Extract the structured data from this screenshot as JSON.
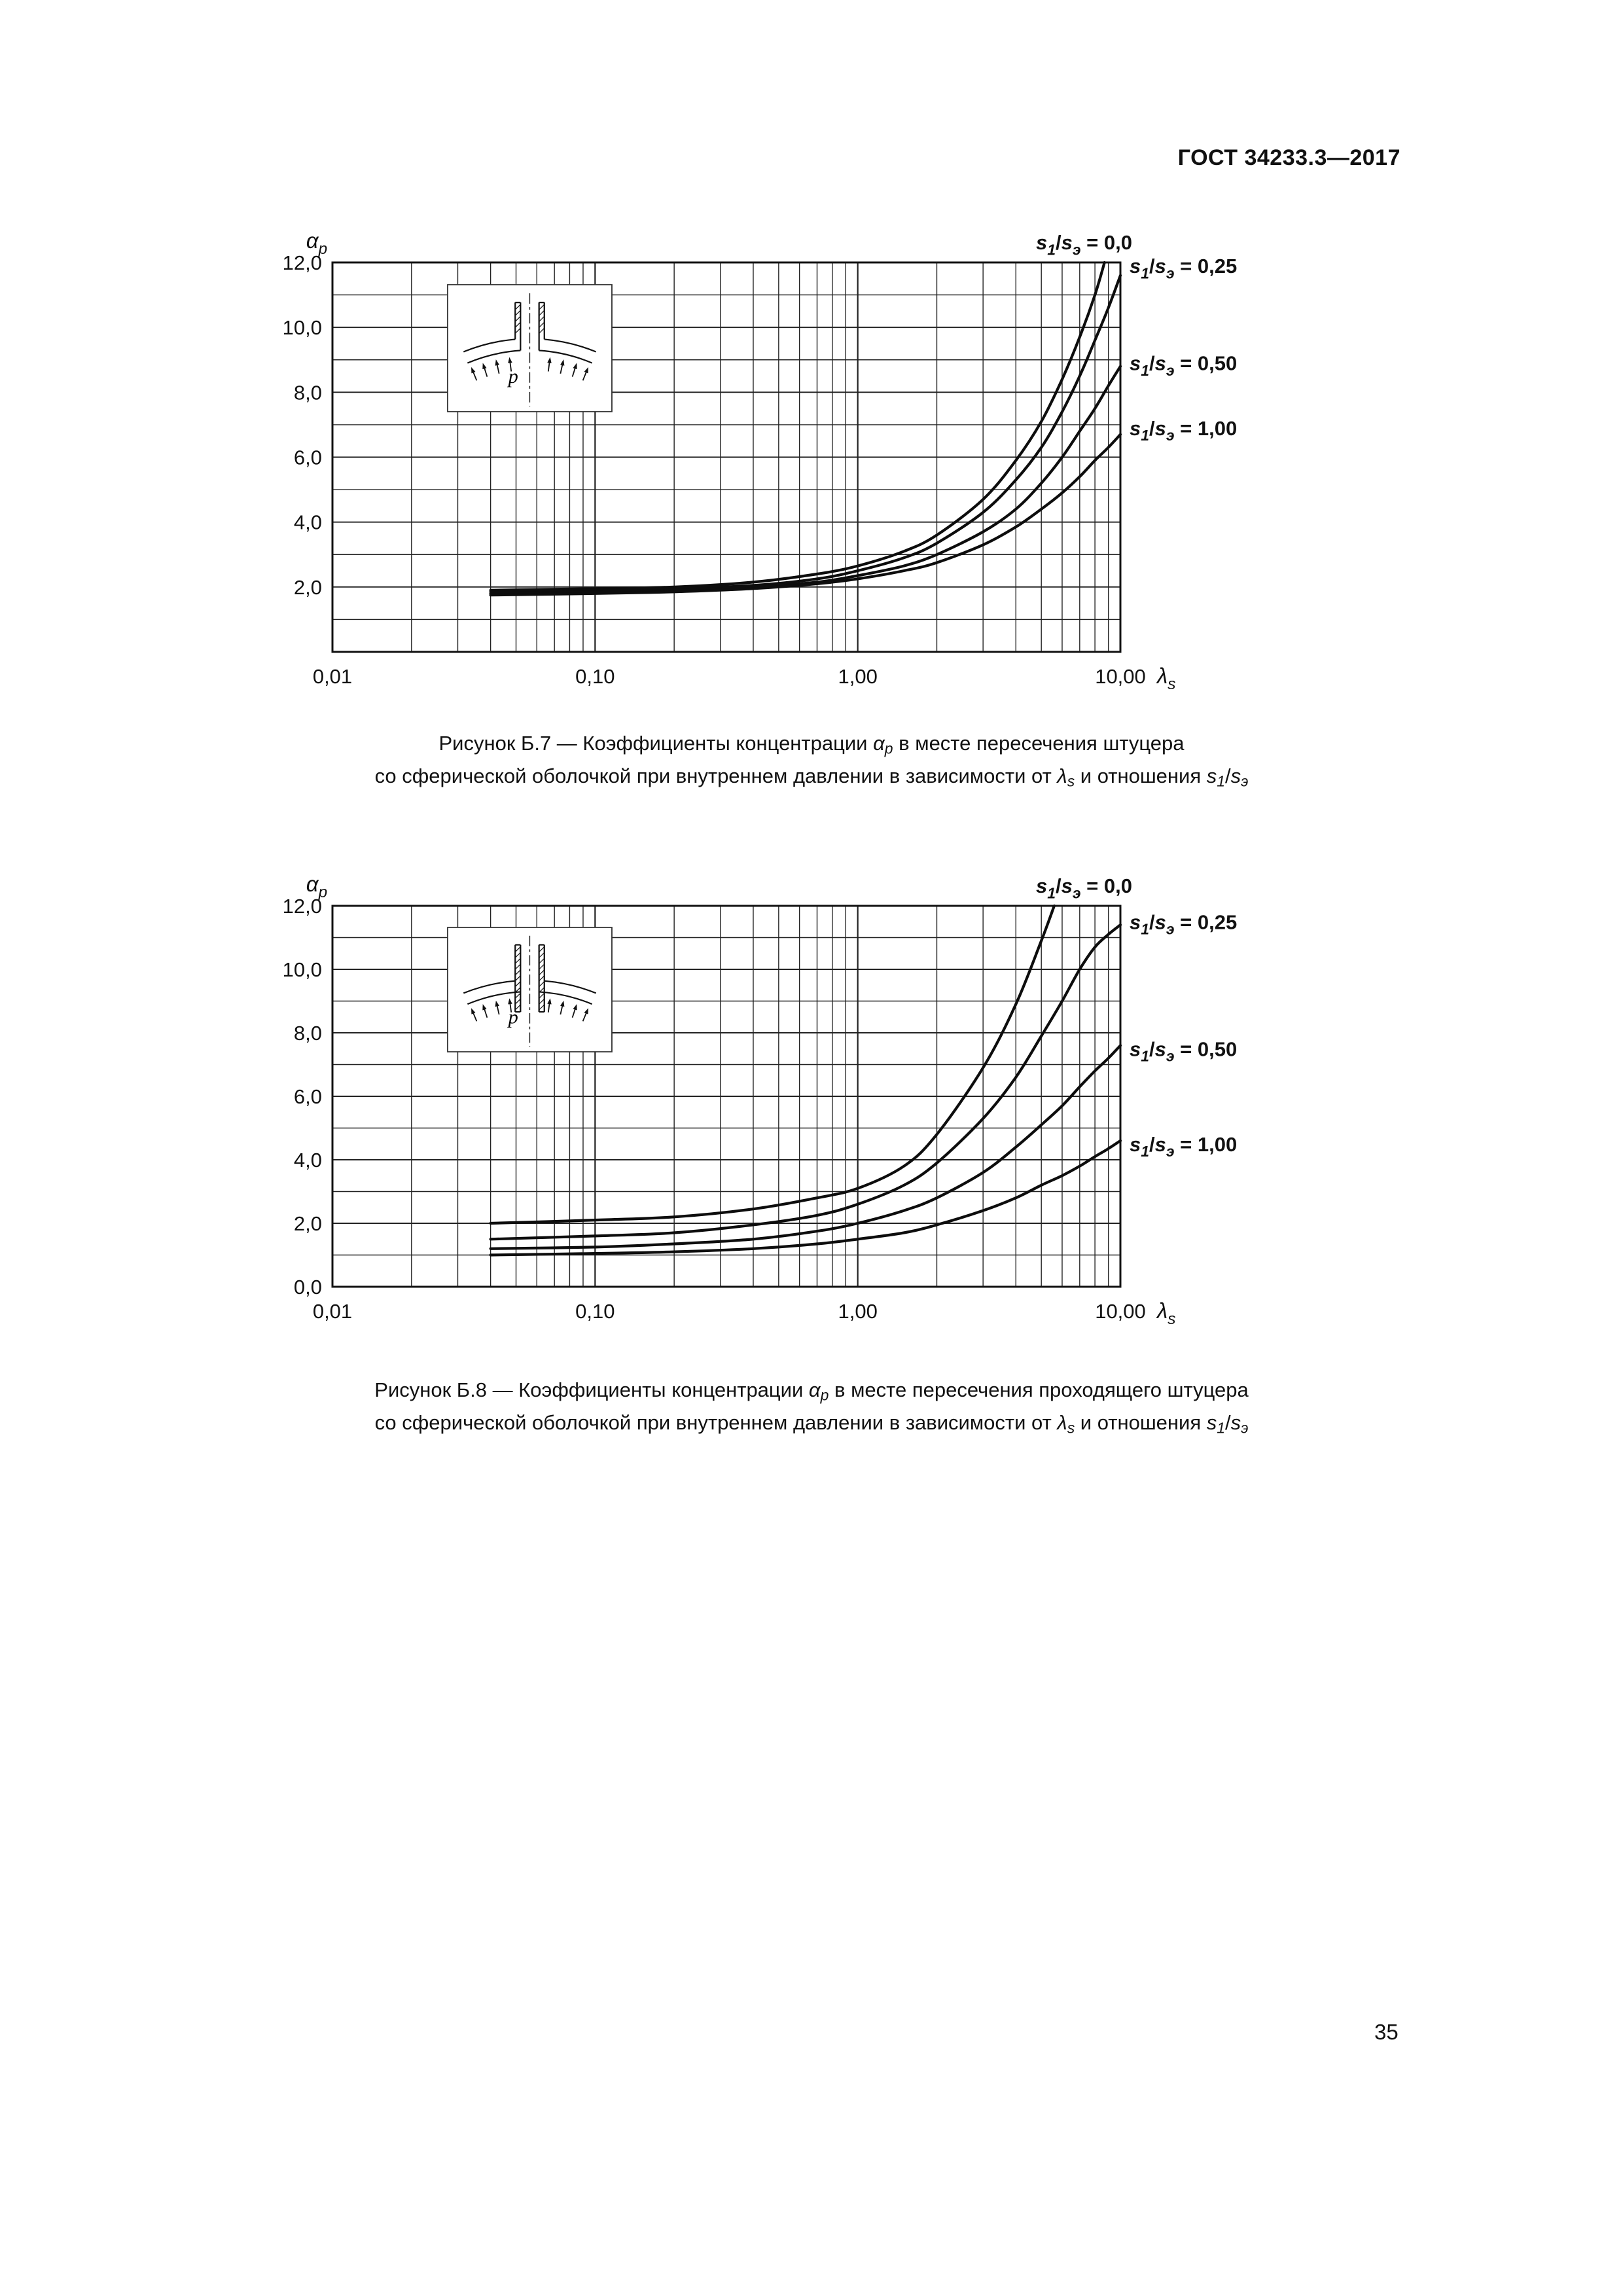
{
  "page": {
    "header": "ГОСТ 34233.3—2017",
    "page_number": "35"
  },
  "chart_data": [
    {
      "name": "figure-b7",
      "type": "line",
      "x_scale": "log",
      "xlim": [
        0.01,
        10
      ],
      "ylim": [
        0,
        12
      ],
      "grid": {
        "y_minor_step": 1,
        "x_log_minors": true
      },
      "x_axis": {
        "title_parts": [
          {
            "t": "λ",
            "i": true
          },
          {
            "t": "s",
            "sub": true,
            "i": true
          }
        ],
        "ticks": [
          {
            "v": 0.01,
            "t": "0,01"
          },
          {
            "v": 0.1,
            "t": "0,10"
          },
          {
            "v": 1,
            "t": "1,00"
          },
          {
            "v": 10,
            "t": "10,00"
          }
        ]
      },
      "y_axis": {
        "title_parts": [
          {
            "t": "α",
            "i": true
          },
          {
            "t": "p",
            "sub": true,
            "i": true
          }
        ],
        "ticks": [
          {
            "v": 2,
            "t": "2,0"
          },
          {
            "v": 4,
            "t": "4,0"
          },
          {
            "v": 6,
            "t": "6,0"
          },
          {
            "v": 8,
            "t": "8,0"
          },
          {
            "v": 10,
            "t": "10,0"
          },
          {
            "v": 12,
            "t": "12,0"
          }
        ]
      },
      "series": [
        {
          "name": "s1/sэ = 0,0",
          "label_parts": [
            {
              "t": "s",
              "i": true
            },
            {
              "t": "1",
              "sub": true,
              "i": true
            },
            {
              "t": "/"
            },
            {
              "t": "s",
              "i": true
            },
            {
              "t": "э",
              "sub": true,
              "i": true
            },
            {
              "t": " = 0,0"
            }
          ],
          "label_pos": "top",
          "points": [
            [
              0.04,
              1.9
            ],
            [
              0.1,
              1.95
            ],
            [
              0.2,
              2.0
            ],
            [
              0.4,
              2.15
            ],
            [
              0.7,
              2.4
            ],
            [
              1,
              2.65
            ],
            [
              1.5,
              3.1
            ],
            [
              2,
              3.6
            ],
            [
              3,
              4.7
            ],
            [
              4,
              5.9
            ],
            [
              5,
              7.1
            ],
            [
              6,
              8.4
            ],
            [
              7,
              9.7
            ],
            [
              8,
              11.0
            ],
            [
              8.7,
              12
            ]
          ]
        },
        {
          "name": "s1/sэ = 0,25",
          "label_parts": [
            {
              "t": "s",
              "i": true
            },
            {
              "t": "1",
              "sub": true,
              "i": true
            },
            {
              "t": "/"
            },
            {
              "t": "s",
              "i": true
            },
            {
              "t": "э",
              "sub": true,
              "i": true
            },
            {
              "t": " = 0,25"
            }
          ],
          "label_pos": "right",
          "label_y": 11.9,
          "points": [
            [
              0.04,
              1.85
            ],
            [
              0.1,
              1.9
            ],
            [
              0.2,
              1.95
            ],
            [
              0.4,
              2.05
            ],
            [
              0.7,
              2.25
            ],
            [
              1,
              2.5
            ],
            [
              1.5,
              2.9
            ],
            [
              2,
              3.35
            ],
            [
              3,
              4.3
            ],
            [
              4,
              5.3
            ],
            [
              5,
              6.3
            ],
            [
              6,
              7.4
            ],
            [
              7,
              8.5
            ],
            [
              8,
              9.6
            ],
            [
              9,
              10.6
            ],
            [
              10,
              11.6
            ]
          ]
        },
        {
          "name": "s1/sэ = 0,50",
          "label_parts": [
            {
              "t": "s",
              "i": true
            },
            {
              "t": "1",
              "sub": true,
              "i": true
            },
            {
              "t": "/"
            },
            {
              "t": "s",
              "i": true
            },
            {
              "t": "э",
              "sub": true,
              "i": true
            },
            {
              "t": " = 0,50"
            }
          ],
          "label_pos": "right",
          "label_y": 8.9,
          "points": [
            [
              0.04,
              1.8
            ],
            [
              0.1,
              1.85
            ],
            [
              0.2,
              1.9
            ],
            [
              0.4,
              2.0
            ],
            [
              0.7,
              2.15
            ],
            [
              1,
              2.35
            ],
            [
              1.5,
              2.65
            ],
            [
              2,
              3.0
            ],
            [
              3,
              3.7
            ],
            [
              4,
              4.4
            ],
            [
              5,
              5.2
            ],
            [
              6,
              6.0
            ],
            [
              7,
              6.8
            ],
            [
              8,
              7.5
            ],
            [
              9,
              8.2
            ],
            [
              10,
              8.8
            ]
          ]
        },
        {
          "name": "s1/sэ = 1,00",
          "label_parts": [
            {
              "t": "s",
              "i": true
            },
            {
              "t": "1",
              "sub": true,
              "i": true
            },
            {
              "t": "/"
            },
            {
              "t": "s",
              "i": true
            },
            {
              "t": "э",
              "sub": true,
              "i": true
            },
            {
              "t": " = 1,00"
            }
          ],
          "label_pos": "right",
          "label_y": 6.9,
          "points": [
            [
              0.04,
              1.75
            ],
            [
              0.1,
              1.8
            ],
            [
              0.2,
              1.85
            ],
            [
              0.4,
              1.95
            ],
            [
              0.7,
              2.1
            ],
            [
              1,
              2.25
            ],
            [
              1.5,
              2.5
            ],
            [
              2,
              2.75
            ],
            [
              3,
              3.3
            ],
            [
              4,
              3.85
            ],
            [
              5,
              4.4
            ],
            [
              6,
              4.9
            ],
            [
              7,
              5.4
            ],
            [
              8,
              5.9
            ],
            [
              9,
              6.3
            ],
            [
              10,
              6.7
            ]
          ]
        }
      ],
      "inset": {
        "pressure_label": "p",
        "passing": false
      },
      "caption_lines": [
        [
          {
            "t": "Рисунок Б.7 — Коэффициенты концентрации "
          },
          {
            "t": "α",
            "i": true
          },
          {
            "t": "p",
            "sub": true,
            "i": true
          },
          {
            "t": " в месте пересечения штуцера"
          }
        ],
        [
          {
            "t": "со сферической оболочкой при внутреннем давлении в зависимости от "
          },
          {
            "t": "λ",
            "i": true
          },
          {
            "t": "s",
            "sub": true,
            "i": true
          },
          {
            "t": " и отношения "
          },
          {
            "t": "s",
            "i": true
          },
          {
            "t": "1",
            "sub": true,
            "i": true
          },
          {
            "t": "/"
          },
          {
            "t": "s",
            "i": true
          },
          {
            "t": "э",
            "sub": true,
            "i": true
          }
        ]
      ]
    },
    {
      "name": "figure-b8",
      "type": "line",
      "x_scale": "log",
      "xlim": [
        0.01,
        10
      ],
      "ylim": [
        0,
        12
      ],
      "grid": {
        "y_minor_step": 1,
        "x_log_minors": true
      },
      "x_axis": {
        "title_parts": [
          {
            "t": "λ",
            "i": true
          },
          {
            "t": "s",
            "sub": true,
            "i": true
          }
        ],
        "ticks": [
          {
            "v": 0.01,
            "t": "0,01"
          },
          {
            "v": 0.1,
            "t": "0,10"
          },
          {
            "v": 1,
            "t": "1,00"
          },
          {
            "v": 10,
            "t": "10,00"
          }
        ]
      },
      "y_axis": {
        "title_parts": [
          {
            "t": "α",
            "i": true
          },
          {
            "t": "p",
            "sub": true,
            "i": true
          }
        ],
        "ticks": [
          {
            "v": 0,
            "t": "0,0"
          },
          {
            "v": 2,
            "t": "2,0"
          },
          {
            "v": 4,
            "t": "4,0"
          },
          {
            "v": 6,
            "t": "6,0"
          },
          {
            "v": 8,
            "t": "8,0"
          },
          {
            "v": 10,
            "t": "10,0"
          },
          {
            "v": 12,
            "t": "12,0"
          }
        ]
      },
      "series": [
        {
          "name": "s1/sэ = 0,0",
          "label_parts": [
            {
              "t": "s",
              "i": true
            },
            {
              "t": "1",
              "sub": true,
              "i": true
            },
            {
              "t": "/"
            },
            {
              "t": "s",
              "i": true
            },
            {
              "t": "э",
              "sub": true,
              "i": true
            },
            {
              "t": " = 0,0"
            }
          ],
          "label_pos": "top",
          "points": [
            [
              0.04,
              2.0
            ],
            [
              0.1,
              2.1
            ],
            [
              0.2,
              2.2
            ],
            [
              0.4,
              2.45
            ],
            [
              0.7,
              2.8
            ],
            [
              1,
              3.1
            ],
            [
              1.5,
              3.8
            ],
            [
              2,
              4.8
            ],
            [
              3,
              6.9
            ],
            [
              4,
              8.9
            ],
            [
              5,
              10.9
            ],
            [
              5.6,
              12
            ]
          ]
        },
        {
          "name": "s1/sэ = 0,25",
          "label_parts": [
            {
              "t": "s",
              "i": true
            },
            {
              "t": "1",
              "sub": true,
              "i": true
            },
            {
              "t": "/"
            },
            {
              "t": "s",
              "i": true
            },
            {
              "t": "э",
              "sub": true,
              "i": true
            },
            {
              "t": " = 0,25"
            }
          ],
          "label_pos": "right",
          "label_y": 11.5,
          "points": [
            [
              0.04,
              1.5
            ],
            [
              0.1,
              1.6
            ],
            [
              0.2,
              1.7
            ],
            [
              0.4,
              1.95
            ],
            [
              0.7,
              2.25
            ],
            [
              1,
              2.6
            ],
            [
              1.5,
              3.2
            ],
            [
              2,
              3.9
            ],
            [
              3,
              5.3
            ],
            [
              4,
              6.6
            ],
            [
              5,
              7.9
            ],
            [
              6,
              9.0
            ],
            [
              7,
              10.0
            ],
            [
              8,
              10.7
            ],
            [
              9,
              11.1
            ],
            [
              10,
              11.4
            ]
          ]
        },
        {
          "name": "s1/sэ = 0,50",
          "label_parts": [
            {
              "t": "s",
              "i": true
            },
            {
              "t": "1",
              "sub": true,
              "i": true
            },
            {
              "t": "/"
            },
            {
              "t": "s",
              "i": true
            },
            {
              "t": "э",
              "sub": true,
              "i": true
            },
            {
              "t": " = 0,50"
            }
          ],
          "label_pos": "right",
          "label_y": 7.5,
          "points": [
            [
              0.04,
              1.2
            ],
            [
              0.1,
              1.25
            ],
            [
              0.2,
              1.35
            ],
            [
              0.4,
              1.5
            ],
            [
              0.7,
              1.75
            ],
            [
              1,
              2.0
            ],
            [
              1.5,
              2.4
            ],
            [
              2,
              2.8
            ],
            [
              3,
              3.6
            ],
            [
              4,
              4.4
            ],
            [
              5,
              5.1
            ],
            [
              6,
              5.7
            ],
            [
              7,
              6.3
            ],
            [
              8,
              6.8
            ],
            [
              9,
              7.2
            ],
            [
              10,
              7.6
            ]
          ]
        },
        {
          "name": "s1/sэ = 1,00",
          "label_parts": [
            {
              "t": "s",
              "i": true
            },
            {
              "t": "1",
              "sub": true,
              "i": true
            },
            {
              "t": "/"
            },
            {
              "t": "s",
              "i": true
            },
            {
              "t": "э",
              "sub": true,
              "i": true
            },
            {
              "t": " = 1,00"
            }
          ],
          "label_pos": "right",
          "label_y": 4.5,
          "points": [
            [
              0.04,
              1.0
            ],
            [
              0.1,
              1.05
            ],
            [
              0.2,
              1.1
            ],
            [
              0.4,
              1.2
            ],
            [
              0.7,
              1.35
            ],
            [
              1,
              1.5
            ],
            [
              1.5,
              1.7
            ],
            [
              2,
              1.95
            ],
            [
              3,
              2.4
            ],
            [
              4,
              2.8
            ],
            [
              5,
              3.2
            ],
            [
              6,
              3.5
            ],
            [
              7,
              3.8
            ],
            [
              8,
              4.1
            ],
            [
              9,
              4.35
            ],
            [
              10,
              4.6
            ]
          ]
        }
      ],
      "inset": {
        "pressure_label": "p",
        "passing": true
      },
      "caption_lines": [
        [
          {
            "t": "Рисунок Б.8 — Коэффициенты концентрации "
          },
          {
            "t": "α",
            "i": true
          },
          {
            "t": "p",
            "sub": true,
            "i": true
          },
          {
            "t": " в месте пересечения проходящего штуцера"
          }
        ],
        [
          {
            "t": "со сферической оболочкой при внутреннем давлении в зависимости от "
          },
          {
            "t": "λ",
            "i": true
          },
          {
            "t": "s",
            "sub": true,
            "i": true
          },
          {
            "t": " и отношения "
          },
          {
            "t": "s",
            "i": true
          },
          {
            "t": "1",
            "sub": true,
            "i": true
          },
          {
            "t": "/"
          },
          {
            "t": "s",
            "i": true
          },
          {
            "t": "э",
            "sub": true,
            "i": true
          }
        ]
      ]
    }
  ]
}
